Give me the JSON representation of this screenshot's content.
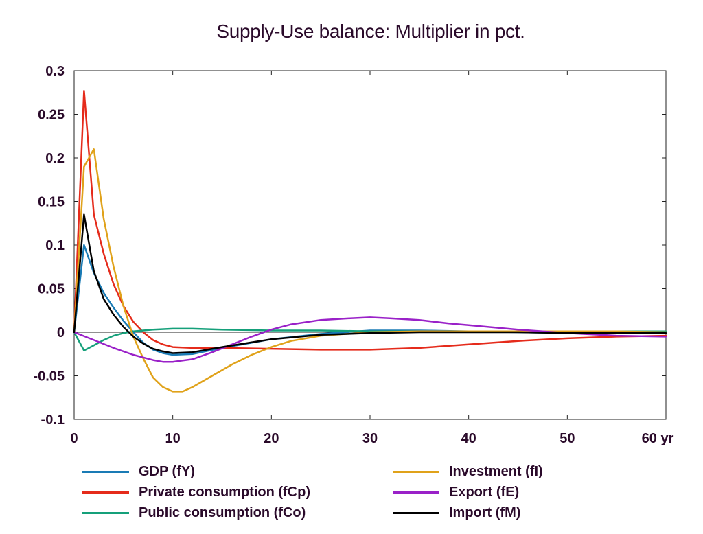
{
  "chart_data": {
    "type": "line",
    "title": "Supply-Use balance: Multiplier in pct.",
    "xlabel": "",
    "ylabel": "",
    "xlim": [
      0,
      60
    ],
    "ylim": [
      -0.1,
      0.3
    ],
    "x_ticks": [
      "0",
      "10",
      "20",
      "30",
      "40",
      "50",
      "60 yr"
    ],
    "y_ticks": [
      "0.3",
      "0.25",
      "0.2",
      "0.15",
      "0.1",
      "0.05",
      "0",
      "-0.05",
      "-0.1"
    ],
    "grid": false,
    "legend_position": "bottom",
    "series": [
      {
        "name": "GDP (fY)",
        "color": "#1a7bb5",
        "x": [
          0,
          1,
          2,
          3,
          4,
          5,
          6,
          7,
          8,
          9,
          10,
          12,
          15,
          20,
          25,
          30,
          35,
          40,
          45,
          50,
          55,
          60
        ],
        "y": [
          0,
          0.1,
          0.068,
          0.045,
          0.028,
          0.013,
          0.0,
          -0.012,
          -0.02,
          -0.024,
          -0.026,
          -0.025,
          -0.018,
          -0.008,
          -0.002,
          0.002,
          0.002,
          0.001,
          0.0,
          -0.001,
          -0.001,
          -0.001
        ]
      },
      {
        "name": "Private consumption (fCp)",
        "color": "#e52b1b",
        "x": [
          0,
          1,
          2,
          3,
          4,
          5,
          6,
          7,
          8,
          9,
          10,
          12,
          15,
          20,
          25,
          30,
          35,
          40,
          45,
          50,
          55,
          60
        ],
        "y": [
          0,
          0.277,
          0.135,
          0.09,
          0.055,
          0.03,
          0.012,
          0.0,
          -0.009,
          -0.014,
          -0.017,
          -0.018,
          -0.018,
          -0.019,
          -0.02,
          -0.02,
          -0.018,
          -0.014,
          -0.01,
          -0.007,
          -0.005,
          -0.004
        ]
      },
      {
        "name": "Public consumption (fCo)",
        "color": "#15a07a",
        "x": [
          0,
          1,
          2,
          3,
          4,
          5,
          6,
          8,
          10,
          12,
          15,
          20,
          25,
          30,
          40,
          50,
          60
        ],
        "y": [
          0,
          -0.021,
          -0.015,
          -0.009,
          -0.004,
          -0.001,
          0.001,
          0.003,
          0.004,
          0.004,
          0.003,
          0.002,
          0.002,
          0.001,
          0.001,
          0.001,
          0.001
        ]
      },
      {
        "name": "Investment (fI)",
        "color": "#e0a21a",
        "x": [
          0,
          1,
          2,
          3,
          4,
          5,
          6,
          7,
          8,
          9,
          10,
          11,
          12,
          14,
          16,
          18,
          20,
          22,
          25,
          30,
          35,
          40,
          45,
          50,
          55,
          60
        ],
        "y": [
          0,
          0.19,
          0.21,
          0.13,
          0.075,
          0.03,
          -0.005,
          -0.03,
          -0.052,
          -0.063,
          -0.068,
          -0.068,
          -0.063,
          -0.05,
          -0.037,
          -0.026,
          -0.017,
          -0.01,
          -0.004,
          0.0,
          0.001,
          0.001,
          0.001,
          0.001,
          0.001,
          0.0
        ]
      },
      {
        "name": "Export (fE)",
        "color": "#9a21c8",
        "x": [
          0,
          2,
          4,
          6,
          8,
          9,
          10,
          12,
          14,
          16,
          18,
          20,
          22,
          25,
          28,
          30,
          32,
          35,
          38,
          40,
          45,
          50,
          55,
          60
        ],
        "y": [
          0,
          -0.009,
          -0.018,
          -0.026,
          -0.032,
          -0.034,
          -0.034,
          -0.031,
          -0.023,
          -0.014,
          -0.005,
          0.003,
          0.009,
          0.014,
          0.016,
          0.017,
          0.016,
          0.014,
          0.01,
          0.008,
          0.003,
          -0.001,
          -0.004,
          -0.005
        ]
      },
      {
        "name": "Import (fM)",
        "color": "#000000",
        "x": [
          0,
          1,
          2,
          3,
          4,
          5,
          6,
          7,
          8,
          9,
          10,
          12,
          15,
          20,
          25,
          30,
          35,
          40,
          45,
          50,
          55,
          60
        ],
        "y": [
          0,
          0.135,
          0.07,
          0.038,
          0.02,
          0.006,
          -0.005,
          -0.013,
          -0.019,
          -0.022,
          -0.024,
          -0.023,
          -0.017,
          -0.008,
          -0.003,
          -0.001,
          0.0,
          0.0,
          0.0,
          -0.001,
          -0.001,
          -0.001
        ]
      }
    ]
  }
}
